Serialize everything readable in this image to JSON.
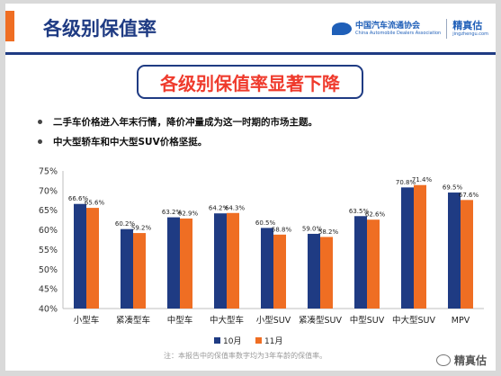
{
  "header": {
    "title": "各级别保值率"
  },
  "logo": {
    "association_cn": "中国汽车流通协会",
    "association_en": "China Automobile Dealers Association",
    "brand_cn": "精真估",
    "brand_en": "jingzhengu.com"
  },
  "banner": {
    "text": "各级别保值率显著下降"
  },
  "bullets": [
    "二手车价格进入年末行情，降价冲量成为这一时期的市场主题。",
    "中大型轿车和中大型SUV价格坚挺。"
  ],
  "colors": {
    "series1": "#1f3b83",
    "series2": "#ef6e23",
    "accent": "#ef3b2d"
  },
  "chart_data": {
    "type": "bar",
    "categories": [
      "小型车",
      "紧凑型车",
      "中型车",
      "中大型车",
      "小型SUV",
      "紧凑型SUV",
      "中型SUV",
      "中大型SUV",
      "MPV"
    ],
    "series": [
      {
        "name": "10月",
        "values": [
          66.6,
          60.2,
          63.2,
          64.2,
          60.5,
          59.0,
          63.5,
          70.8,
          69.5
        ],
        "labels": [
          "66.6%",
          "60.2%",
          "63.2%",
          "64.2%",
          "60.5%",
          "59.0%",
          "63.5%",
          "70.8%",
          "69.5%"
        ]
      },
      {
        "name": "11月",
        "values": [
          65.6,
          59.2,
          62.9,
          64.3,
          58.8,
          58.2,
          62.6,
          71.4,
          67.6
        ],
        "labels": [
          "65.6%",
          "59.2%",
          "62.9%",
          "64.3%",
          "58.8%",
          "58.2%",
          "62.6%",
          "71.4%",
          "67.6%"
        ]
      }
    ],
    "ylim": [
      40,
      75
    ],
    "yticks": [
      "40%",
      "45%",
      "50%",
      "55%",
      "60%",
      "65%",
      "70%",
      "75%"
    ],
    "legend_position": "bottom",
    "grid": false
  },
  "footer": {
    "note": "注：本报告中的保值率数字均为3年车龄的保值率。",
    "watermark": "精真估"
  }
}
